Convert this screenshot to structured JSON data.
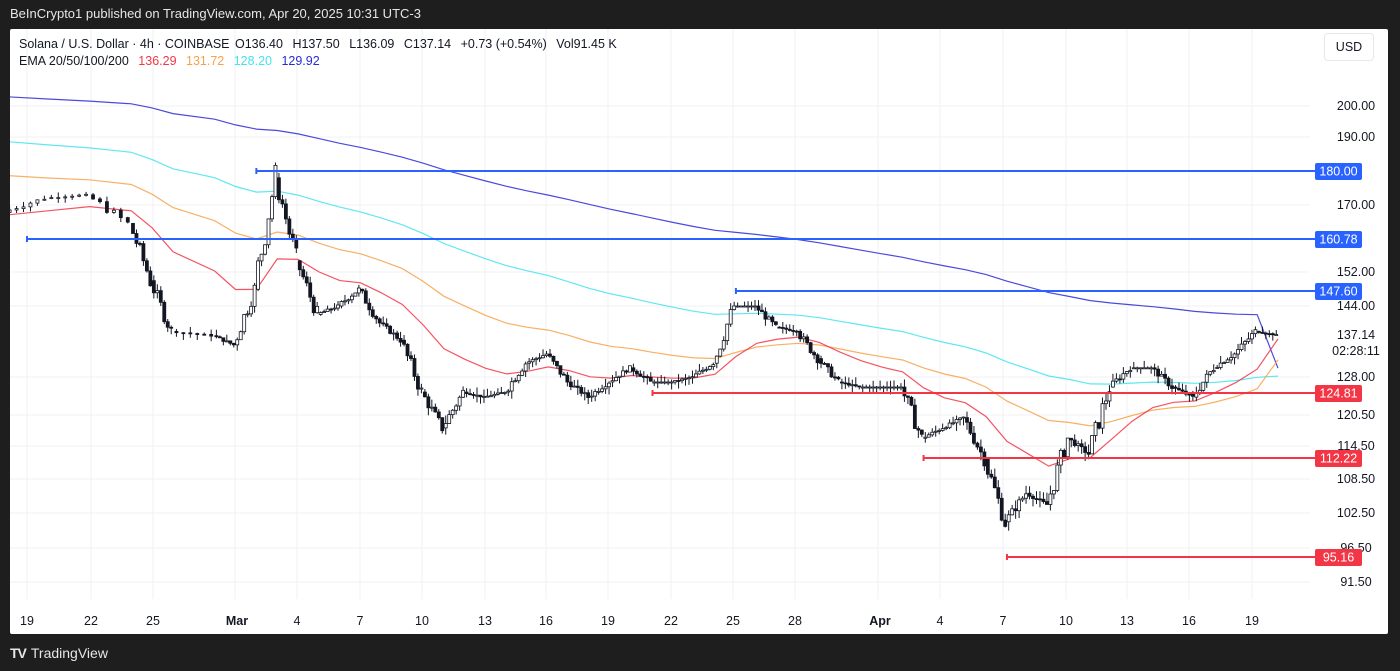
{
  "header": {
    "published": "BeInCrypto1 published on TradingView.com, Apr 20, 2025 10:31 UTC-3"
  },
  "legend": {
    "symbol": "Solana / U.S. Dollar · 4h · COINBASE",
    "open": "O136.40",
    "high": "H137.50",
    "low": "L136.09",
    "close": "C137.14",
    "change": "+0.73 (+0.54%)",
    "volume": "Vol91.45 K",
    "ema_label": "EMA 20/50/100/200",
    "ema_values": [
      "136.29",
      "131.72",
      "128.20",
      "129.92"
    ],
    "ema_colors": [
      "#f23645",
      "#f7a24a",
      "#43e3f0",
      "#2a2ad8"
    ]
  },
  "currency_button": "USD",
  "footer": {
    "brand": "TradingView",
    "logo": "TV"
  },
  "chart_data": {
    "type": "line",
    "title": "Solana / U.S. Dollar · 4h · COINBASE",
    "xlabel": "",
    "ylabel": "USD",
    "x_ticks": [
      "19",
      "22",
      "25",
      "Mar",
      "4",
      "7",
      "10",
      "13",
      "16",
      "19",
      "22",
      "25",
      "28",
      "Apr",
      "4",
      "7",
      "10",
      "13",
      "16",
      "19"
    ],
    "y_ticks": [
      "200.00",
      "190.00",
      "170.00",
      "152.00",
      "144.00",
      "128.00",
      "120.50",
      "114.50",
      "108.50",
      "102.50",
      "96.50",
      "91.50"
    ],
    "ylim": [
      89,
      215
    ],
    "grid": true,
    "last_price": "137.14",
    "countdown": "02:28:11",
    "resistance_levels": [
      {
        "value": "180.00",
        "color": "#2962ff",
        "start": "Mar 2"
      },
      {
        "value": "160.78",
        "color": "#2962ff",
        "start": "Feb 19"
      },
      {
        "value": "147.60",
        "color": "#2962ff",
        "start": "Mar 25"
      }
    ],
    "support_levels": [
      {
        "value": "124.81",
        "color": "#f23645",
        "start": "Mar 21"
      },
      {
        "value": "112.22",
        "color": "#f23645",
        "start": "Apr 3"
      },
      {
        "value": "95.16",
        "color": "#f23645",
        "start": "Apr 7"
      }
    ],
    "price_path": {
      "x": [
        "Feb 18",
        "Feb 20",
        "Feb 22",
        "Feb 24",
        "Feb 25",
        "Feb 26",
        "Feb 28",
        "Mar 1",
        "Mar 2",
        "Mar 3",
        "Mar 4",
        "Mar 5",
        "Mar 6",
        "Mar 7",
        "Mar 8",
        "Mar 9",
        "Mar 10",
        "Mar 11",
        "Mar 12",
        "Mar 13",
        "Mar 14",
        "Mar 15",
        "Mar 16",
        "Mar 17",
        "Mar 18",
        "Mar 19",
        "Mar 20",
        "Mar 21",
        "Mar 22",
        "Mar 23",
        "Mar 24",
        "Mar 25",
        "Mar 26",
        "Mar 27",
        "Mar 28",
        "Mar 29",
        "Mar 30",
        "Mar 31",
        "Apr 1",
        "Apr 2",
        "Apr 3",
        "Apr 4",
        "Apr 5",
        "Apr 6",
        "Apr 7",
        "Apr 8",
        "Apr 9",
        "Apr 10",
        "Apr 11",
        "Apr 12",
        "Apr 13",
        "Apr 14",
        "Apr 15",
        "Apr 16",
        "Apr 17",
        "Apr 18",
        "Apr 19",
        "Apr 20"
      ],
      "close": [
        168,
        172,
        173,
        165,
        150,
        138,
        137,
        135,
        148,
        178,
        155,
        142,
        144,
        148,
        140,
        136,
        125,
        118,
        125,
        124,
        125,
        131,
        133,
        127,
        124,
        127,
        130,
        127,
        127,
        128,
        131,
        144,
        144,
        139,
        138,
        132,
        127,
        126,
        126,
        126,
        116,
        118,
        120,
        112,
        101,
        106,
        104,
        116,
        113,
        126,
        130,
        130,
        126,
        124,
        130,
        133,
        138,
        137.14
      ]
    },
    "series": [
      {
        "name": "EMA 20",
        "color": "#f23645",
        "last": 136.29
      },
      {
        "name": "EMA 50",
        "color": "#f7a24a",
        "last": 131.72
      },
      {
        "name": "EMA 100",
        "color": "#43e3f0",
        "last": 128.2
      },
      {
        "name": "EMA 200",
        "color": "#2a2ad8",
        "last": 129.92
      }
    ]
  }
}
